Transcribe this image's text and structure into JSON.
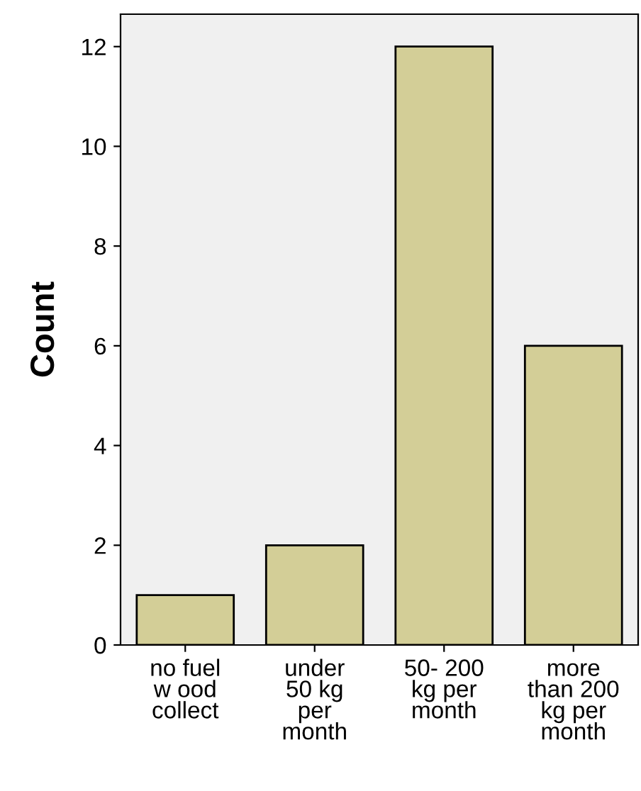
{
  "chart_data": {
    "type": "bar",
    "ylabel": "Count",
    "categories": [
      "no fuel\nw ood\ncollect",
      "under\n50 kg\nper\nmonth",
      "50- 200\nkg per\nmonth",
      "more\nthan 200\nkg per\nmonth"
    ],
    "values": [
      1,
      2,
      12,
      6
    ],
    "color": "#d3ce97",
    "ylim": [
      0,
      12.65
    ],
    "yticks": [
      0,
      2,
      4,
      6,
      8,
      10,
      12
    ],
    "grid": false
  }
}
